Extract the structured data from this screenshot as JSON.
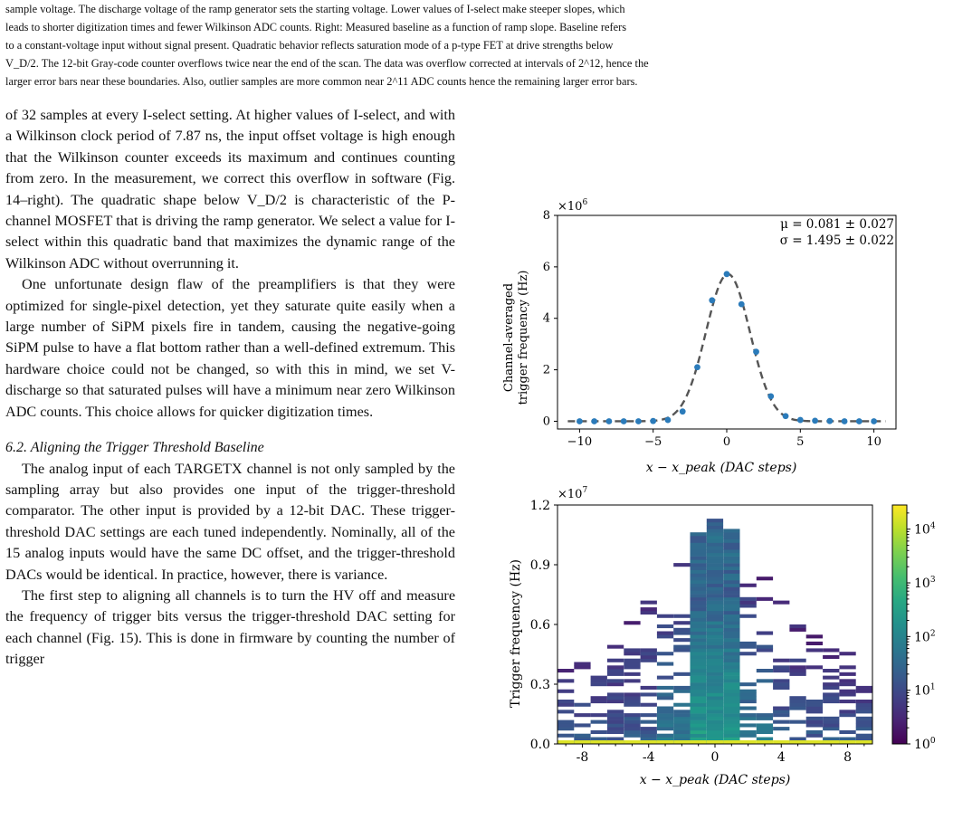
{
  "caption": {
    "line1": "sample voltage. The discharge voltage of the ramp generator sets the starting voltage. Lower values of I-select make steeper slopes, which",
    "line2": "leads to shorter digitization times and fewer Wilkinson ADC counts. Right: Measured baseline as a function of ramp slope. Baseline refers",
    "line3": "to a constant-voltage input without signal present. Quadratic behavior reflects saturation mode of a p-type FET at drive strengths below",
    "line4": "V_D/2. The 12-bit Gray-code counter overflows twice near the end of the scan. The data was overflow corrected at intervals of 2^12, hence the",
    "line5": "larger error bars near these boundaries. Also, outlier samples are more common near 2^11 ADC counts hence the remaining larger error bars."
  },
  "body": {
    "p1": "of 32 samples at every I-select setting. At higher values of I-select, and with a Wilkinson clock period of 7.87 ns, the input offset voltage is high enough that the Wilkinson counter exceeds its maximum and continues counting from zero. In the measurement, we correct this overflow in software (Fig. 14–right). The quadratic shape below V_D/2 is characteristic of the P-channel MOSFET that is driving the ramp generator. We select a value for I-select within this quadratic band that maximizes the dynamic range of the Wilkinson ADC without overrunning it.",
    "p2": "One unfortunate design flaw of the preamplifiers is that they were optimized for single-pixel detection, yet they saturate quite easily when a large number of SiPM pixels fire in tandem, causing the negative-going SiPM pulse to have a flat bottom rather than a well-defined extremum. This hardware choice could not be changed, so with this in mind, we set V-discharge so that saturated pulses will have a minimum near zero Wilkinson ADC counts. This choice allows for quicker digitization times.",
    "heading": "6.2. Aligning the Trigger Threshold Baseline",
    "p3": "The analog input of each TARGETX channel is not only sampled by the sampling array but also provides one input of the trigger-threshold comparator. The other input is provided by a 12-bit DAC. These trigger-threshold DAC settings are each tuned independently. Nominally, all of the 15 analog inputs would have the same DC offset, and the trigger-threshold DACs would be identical. In practice, however, there is variance.",
    "p4": "The first step to aligning all channels is to turn the HV off and measure the frequency of trigger bits versus the trigger-threshold DAC setting for each channel (Fig. 15). This is done in firmware by counting the number of trigger"
  },
  "chart_data": [
    {
      "type": "scatter",
      "xlabel": "x − x_peak (DAC steps)",
      "ylabel_line1": "Channel-averaged",
      "ylabel_line2": "trigger frequency (Hz)",
      "multiplier": "×10^6",
      "annotation_mu": "μ = 0.081 ± 0.027",
      "annotation_sigma": "σ = 1.495 ± 0.022",
      "xlim": [
        -11.5,
        11.5
      ],
      "ylim": [
        -0.3,
        8
      ],
      "x_ticks": [
        -10,
        -5,
        0,
        5,
        10
      ],
      "y_ticks": [
        0,
        2,
        4,
        6,
        8
      ],
      "points": {
        "x": [
          -10,
          -9,
          -8,
          -7,
          -6,
          -5,
          -4,
          -3,
          -2,
          -1,
          0,
          1,
          2,
          3,
          4,
          5,
          6,
          7,
          8,
          9,
          10
        ],
        "y": [
          0.0,
          0.0,
          0.0,
          0.0,
          0.0,
          0.01,
          0.05,
          0.38,
          2.1,
          4.7,
          5.72,
          4.55,
          2.7,
          0.97,
          0.2,
          0.05,
          0.02,
          0.01,
          0.0,
          0.0,
          0.0
        ]
      },
      "fit": {
        "amplitude": 5.72,
        "mu": 0.081,
        "sigma": 1.495,
        "style": "dashed",
        "color": "#555555"
      },
      "point_color": "#2b7bba"
    },
    {
      "type": "heatmap",
      "xlabel": "x − x_peak (DAC steps)",
      "ylabel": "Trigger frequency (Hz)",
      "multiplier": "×10^7",
      "xlim": [
        -9.5,
        9.5
      ],
      "ylim": [
        0,
        1.2
      ],
      "x_ticks": [
        "-8",
        "-4",
        "0",
        "4",
        "8"
      ],
      "y_ticks": [
        "0.0",
        "0.3",
        "0.6",
        "0.9",
        "1.2"
      ],
      "colorbar": {
        "scale": "log",
        "ticks": [
          "10^0",
          "10^1",
          "10^2",
          "10^3",
          "10^4"
        ],
        "colormap": "viridis"
      }
    }
  ]
}
